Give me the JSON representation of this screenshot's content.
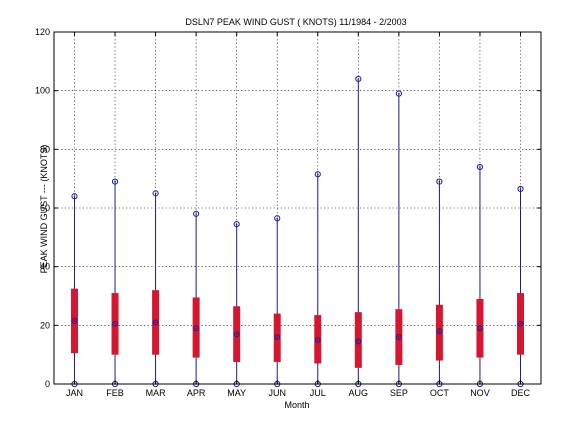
{
  "chart_data": {
    "type": "box",
    "title": "DSLN7  PEAK WIND GUST ( KNOTS) 11/1984 - 2/2003",
    "xlabel": "Month",
    "ylabel": "PEAK WIND GUST ---  (KNOTS)",
    "ylim": [
      0,
      120
    ],
    "yticks": [
      0,
      20,
      40,
      60,
      80,
      100,
      120
    ],
    "grid": true,
    "categories": [
      "JAN",
      "FEB",
      "MAR",
      "APR",
      "MAY",
      "JUN",
      "JUL",
      "AUG",
      "SEP",
      "OCT",
      "NOV",
      "DEC"
    ],
    "series": [
      {
        "stat": "min",
        "values": [
          0,
          0,
          0,
          0,
          0,
          0,
          0,
          0,
          0,
          0,
          0,
          0
        ]
      },
      {
        "stat": "q1",
        "values": [
          10.5,
          10,
          10,
          9,
          7.5,
          7.5,
          7,
          5.5,
          6.5,
          8,
          9,
          10
        ]
      },
      {
        "stat": "median",
        "values": [
          21.5,
          20.5,
          21,
          19,
          17,
          16,
          15,
          14.5,
          16,
          18,
          19,
          20.5
        ]
      },
      {
        "stat": "q3",
        "values": [
          32.5,
          31,
          32,
          29.5,
          26.5,
          24,
          23.5,
          24.5,
          25.5,
          27,
          29,
          31
        ]
      },
      {
        "stat": "max",
        "values": [
          64,
          69,
          65,
          58,
          54.5,
          56.5,
          71.5,
          104,
          99,
          69,
          74,
          66.5
        ]
      }
    ],
    "colors": {
      "whisker": "#1c1ca0",
      "box": "#d6172f",
      "marker": "#1c1ca0",
      "grid": "#000000"
    }
  }
}
